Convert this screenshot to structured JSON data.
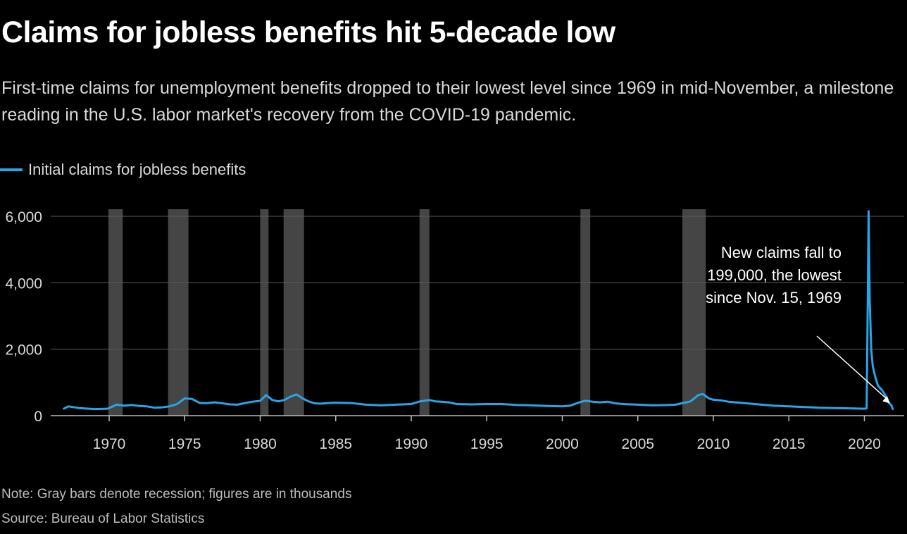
{
  "title": "Claims for jobless benefits hit 5-decade low",
  "subtitle": "First-time claims for unemployment benefits dropped to their lowest level since 1969 in mid-November, a milestone reading in the U.S. labor market's recovery from the COVID-19 pandemic.",
  "legend": {
    "label": "Initial claims for jobless benefits"
  },
  "annotation": {
    "text": "New claims fall to 199,000, the lowest since Nov. 15, 1969"
  },
  "footer": {
    "note": "Note: Gray bars denote recession; figures are in thousands",
    "source": "Source: Bureau of Labor Statistics"
  },
  "colors": {
    "line": "#27a5e8",
    "recession": "#454545",
    "grid": "#5a5a5a",
    "axis": "#bbbbbb",
    "text": "#d9d9d9"
  },
  "chart_data": {
    "type": "line",
    "title": "Claims for jobless benefits hit 5-decade low",
    "xlabel": "",
    "ylabel": "",
    "xlim": [
      1967.0,
      2022.3
    ],
    "ylim": [
      0,
      6200
    ],
    "y_ticks": [
      0,
      2000,
      4000,
      6000
    ],
    "y_tick_labels": [
      "0",
      "2,000",
      "4,000",
      "6,000"
    ],
    "x_ticks": [
      1970,
      1975,
      1980,
      1985,
      1990,
      1995,
      2000,
      2005,
      2010,
      2015,
      2020
    ],
    "x_tick_labels": [
      "1970",
      "1975",
      "1980",
      "1985",
      "1990",
      "1995",
      "2000",
      "2005",
      "2010",
      "2015",
      "2020"
    ],
    "recessions": [
      [
        1969.95,
        1970.9
      ],
      [
        1973.9,
        1975.25
      ],
      [
        1980.0,
        1980.55
      ],
      [
        1981.55,
        1982.9
      ],
      [
        1990.55,
        1991.2
      ],
      [
        2001.2,
        2001.85
      ],
      [
        2007.95,
        2009.5
      ]
    ],
    "series": [
      {
        "name": "Initial claims for jobless benefits",
        "x": [
          1967.0,
          1967.3,
          1968.0,
          1969.0,
          1969.9,
          1970.5,
          1971.0,
          1971.5,
          1972.0,
          1972.5,
          1973.0,
          1973.5,
          1974.0,
          1974.5,
          1975.0,
          1975.5,
          1976.0,
          1976.5,
          1977.0,
          1977.5,
          1978.0,
          1978.5,
          1979.0,
          1979.5,
          1980.0,
          1980.4,
          1980.8,
          1981.2,
          1981.6,
          1982.0,
          1982.4,
          1982.8,
          1983.2,
          1983.6,
          1984.0,
          1984.5,
          1985.0,
          1986.0,
          1987.0,
          1988.0,
          1989.0,
          1990.0,
          1990.6,
          1991.2,
          1991.6,
          1992.0,
          1992.5,
          1993.0,
          1994.0,
          1995.0,
          1996.0,
          1997.0,
          1998.0,
          1999.0,
          2000.0,
          2000.5,
          2001.0,
          2001.5,
          2002.0,
          2002.5,
          2003.0,
          2003.5,
          2004.0,
          2005.0,
          2006.0,
          2007.0,
          2007.5,
          2008.0,
          2008.5,
          2009.0,
          2009.3,
          2009.7,
          2010.0,
          2010.5,
          2011.0,
          2012.0,
          2013.0,
          2014.0,
          2015.0,
          2016.0,
          2017.0,
          2018.0,
          2019.0,
          2020.0,
          2020.15,
          2020.22,
          2020.28,
          2020.35,
          2020.45,
          2020.55,
          2020.7,
          2020.9,
          2021.0,
          2021.2,
          2021.4,
          2021.6,
          2021.8,
          2021.88
        ],
        "values": [
          210,
          280,
          230,
          200,
          210,
          330,
          300,
          320,
          290,
          280,
          240,
          250,
          280,
          350,
          520,
          500,
          380,
          380,
          400,
          370,
          340,
          330,
          380,
          420,
          450,
          620,
          470,
          430,
          470,
          570,
          640,
          520,
          430,
          370,
          360,
          380,
          390,
          380,
          330,
          310,
          330,
          350,
          430,
          470,
          430,
          420,
          400,
          350,
          340,
          350,
          350,
          320,
          310,
          290,
          280,
          300,
          380,
          450,
          420,
          400,
          420,
          370,
          350,
          330,
          310,
          320,
          330,
          380,
          430,
          620,
          650,
          520,
          480,
          460,
          420,
          380,
          340,
          300,
          280,
          260,
          240,
          230,
          220,
          210,
          220,
          3300,
          6150,
          3500,
          2000,
          1500,
          1200,
          900,
          850,
          750,
          600,
          400,
          300,
          199
        ]
      }
    ]
  }
}
